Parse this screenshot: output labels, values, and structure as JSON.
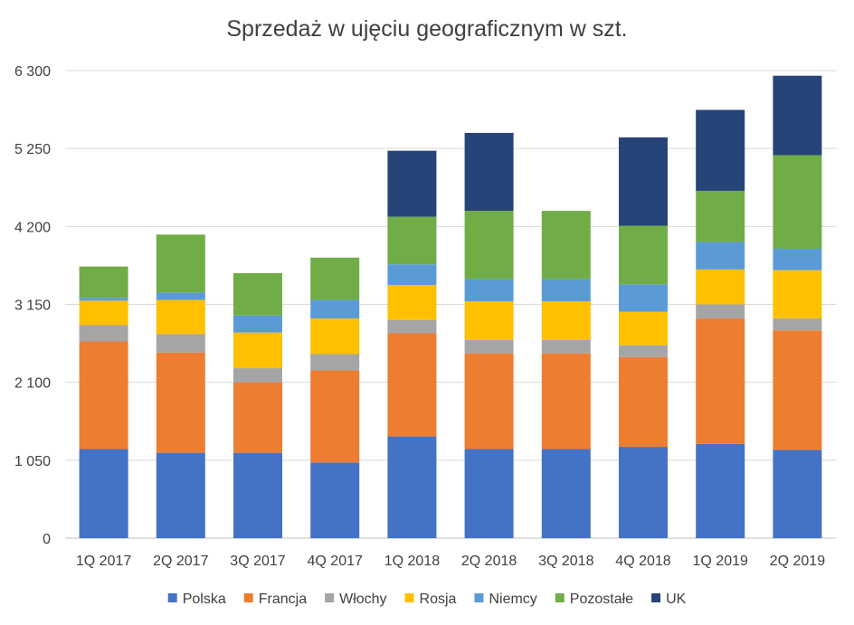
{
  "chart_data": {
    "type": "bar",
    "stacked": true,
    "title": "Sprzedaż w ujęciu geograficznym w szt.",
    "categories": [
      "1Q 2017",
      "2Q 2017",
      "3Q 2017",
      "4Q 2017",
      "1Q 2018",
      "2Q 2018",
      "3Q 2018",
      "4Q 2018",
      "1Q 2019",
      "2Q 2019"
    ],
    "ylim": [
      0,
      6300
    ],
    "yticks": [
      0,
      1050,
      2100,
      3150,
      4200,
      5250,
      6300
    ],
    "ytick_labels": [
      "0",
      "1 050",
      "2 100",
      "3 150",
      "4 200",
      "5 250",
      "6 300"
    ],
    "grid": true,
    "legend_position": "bottom",
    "series": [
      {
        "name": "Polska",
        "color": "#4472C4",
        "values": [
          1200,
          1150,
          1150,
          1020,
          1370,
          1200,
          1200,
          1230,
          1270,
          1190
        ]
      },
      {
        "name": "Francja",
        "color": "#ED7D31",
        "values": [
          1450,
          1350,
          950,
          1240,
          1390,
          1290,
          1290,
          1210,
          1690,
          1610
        ]
      },
      {
        "name": "Włochy",
        "color": "#A5A5A5",
        "values": [
          220,
          250,
          190,
          220,
          180,
          180,
          180,
          160,
          190,
          160
        ]
      },
      {
        "name": "Rosja",
        "color": "#FFC000",
        "values": [
          330,
          460,
          480,
          480,
          470,
          520,
          520,
          450,
          470,
          650
        ]
      },
      {
        "name": "Niemcy",
        "color": "#5B9BD5",
        "values": [
          40,
          100,
          230,
          250,
          280,
          300,
          300,
          370,
          370,
          290
        ]
      },
      {
        "name": "Pozostałe",
        "color": "#70AD47",
        "values": [
          420,
          780,
          570,
          570,
          640,
          920,
          920,
          790,
          690,
          1260
        ]
      },
      {
        "name": "UK",
        "color": "#264478",
        "values": [
          0,
          0,
          0,
          0,
          890,
          1050,
          0,
          1190,
          1090,
          1070
        ]
      }
    ]
  }
}
